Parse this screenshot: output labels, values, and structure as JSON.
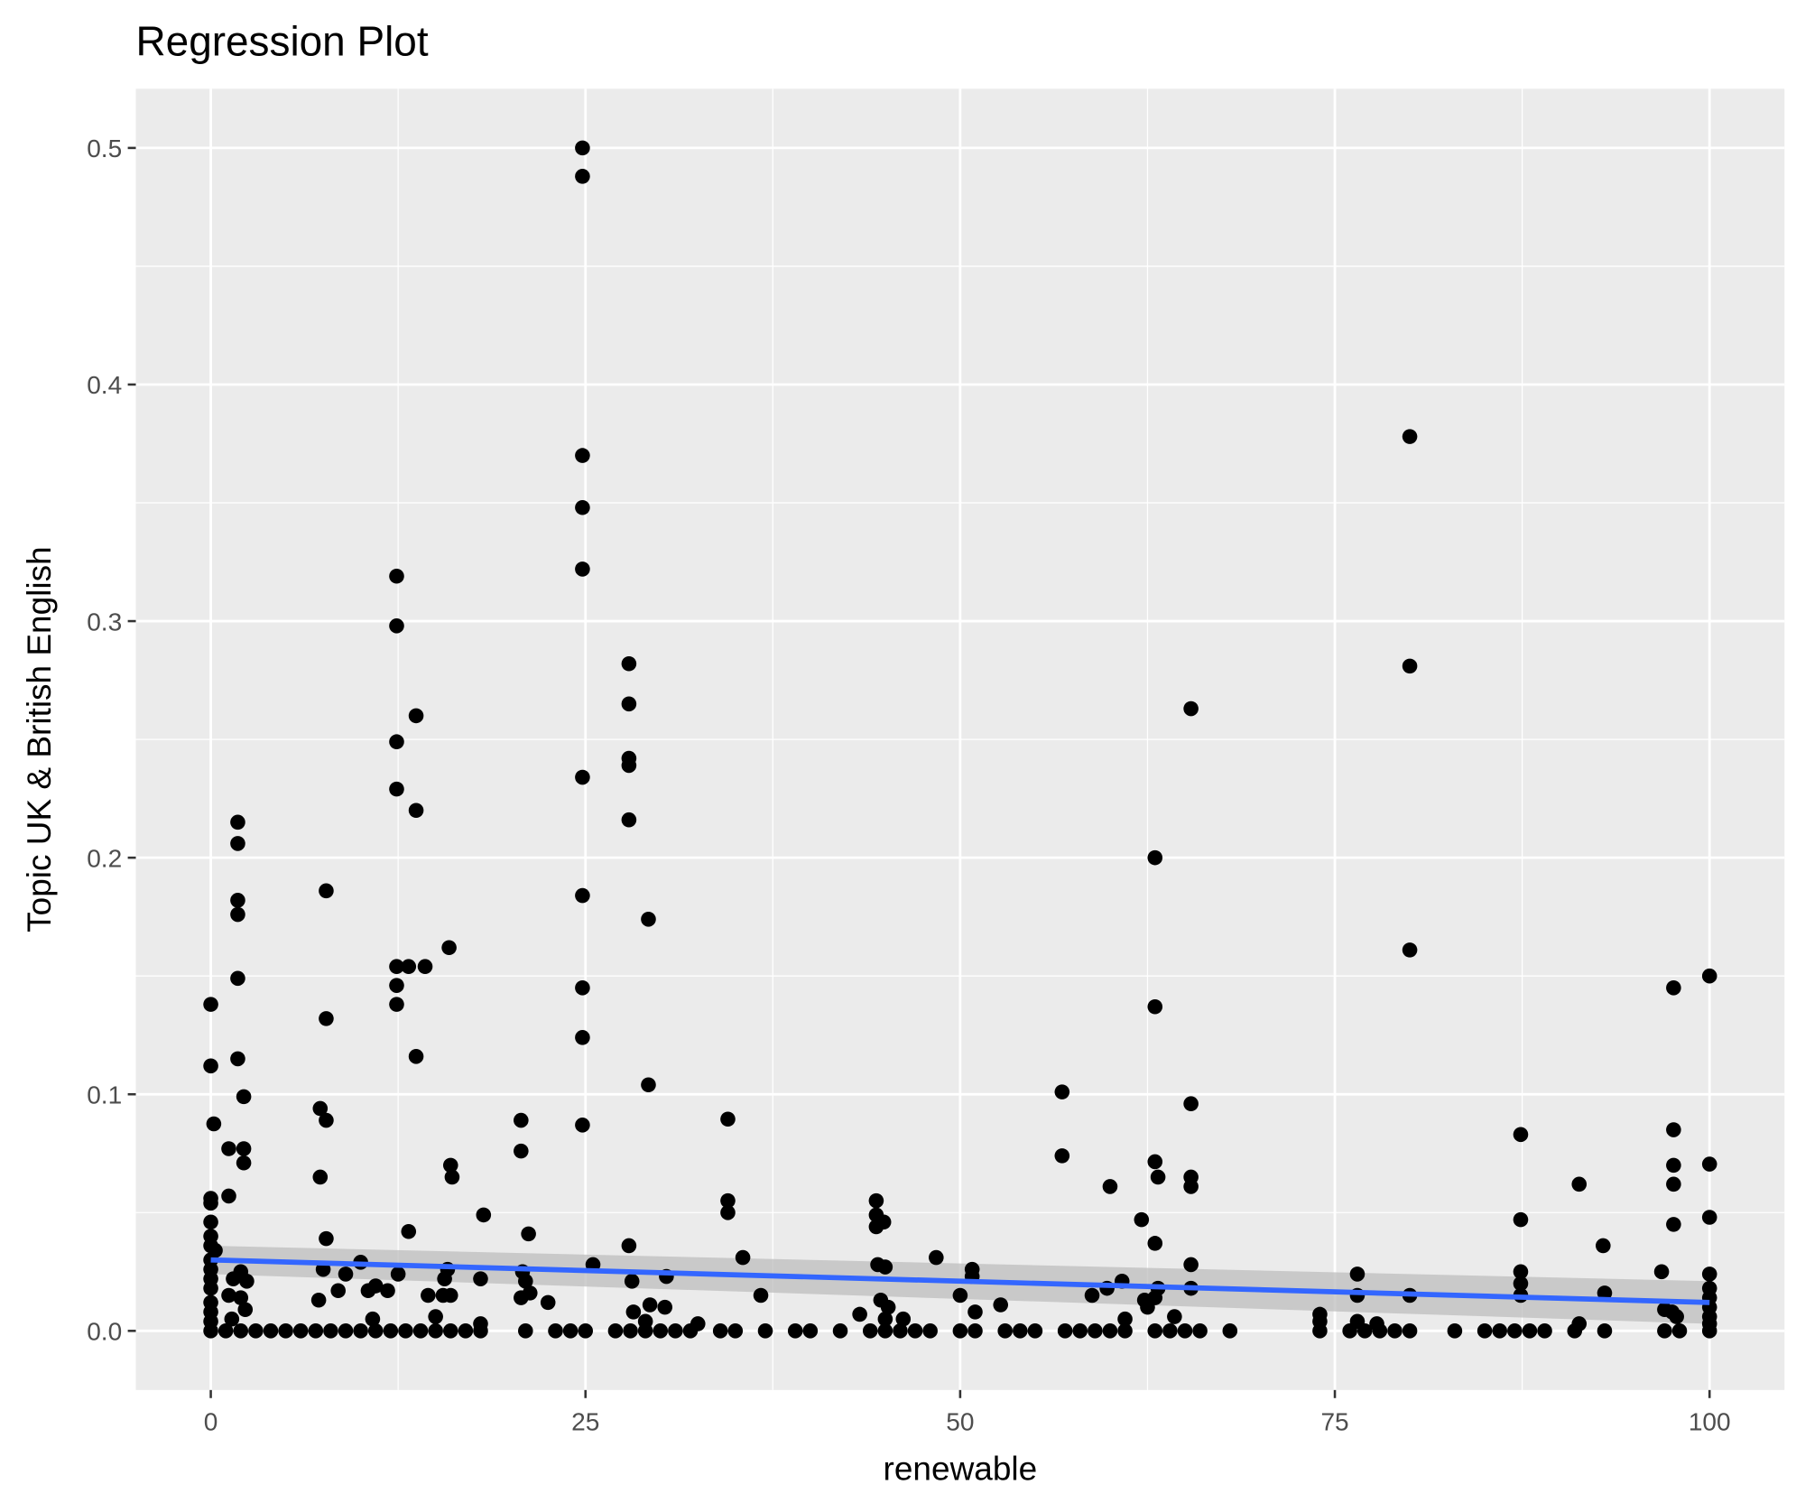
{
  "chart_data": {
    "type": "scatter",
    "title": "Regression Plot",
    "xlabel": "renewable",
    "ylabel": "Topic UK & British English",
    "xlim": [
      -5,
      105
    ],
    "ylim": [
      -0.025,
      0.525
    ],
    "x_ticks": [
      0,
      25,
      50,
      75,
      100
    ],
    "x_tick_labels": [
      "0",
      "25",
      "50",
      "75",
      "100"
    ],
    "y_ticks": [
      0.0,
      0.1,
      0.2,
      0.3,
      0.4,
      0.5
    ],
    "y_tick_labels": [
      "0.0",
      "0.1",
      "0.2",
      "0.3",
      "0.4",
      "0.5"
    ],
    "grid": true,
    "colors": {
      "panel": "#EBEBEB",
      "grid": "#FFFFFF",
      "points": "#000000",
      "line": "#3366FF",
      "band": "#BEBEBE"
    },
    "regression": {
      "x": [
        0,
        100
      ],
      "y": [
        0.03,
        0.012
      ],
      "ci_halfwidth": [
        0.006,
        0.009
      ]
    },
    "points": [
      [
        0,
        0.138
      ],
      [
        0,
        0.112
      ],
      [
        0.2,
        0.0875
      ],
      [
        0,
        0.056
      ],
      [
        0,
        0.054
      ],
      [
        0,
        0.046
      ],
      [
        0,
        0.04
      ],
      [
        0,
        0.036
      ],
      [
        0,
        0.03
      ],
      [
        0,
        0.026
      ],
      [
        0,
        0.022
      ],
      [
        0,
        0.018
      ],
      [
        0,
        0.012
      ],
      [
        0,
        0.008
      ],
      [
        0,
        0.004
      ],
      [
        0,
        0
      ],
      [
        0.3,
        0.034
      ],
      [
        1.2,
        0.077
      ],
      [
        1.2,
        0.057
      ],
      [
        1.8,
        0.215
      ],
      [
        1.8,
        0.206
      ],
      [
        1.8,
        0.182
      ],
      [
        1.8,
        0.176
      ],
      [
        1.8,
        0.149
      ],
      [
        1.8,
        0.115
      ],
      [
        2.2,
        0.099
      ],
      [
        2.2,
        0.077
      ],
      [
        2.2,
        0.071
      ],
      [
        1.2,
        0.015
      ],
      [
        1.5,
        0.022
      ],
      [
        2,
        0.025
      ],
      [
        2.3,
        0.009
      ],
      [
        2.4,
        0.021
      ],
      [
        1.4,
        0.005
      ],
      [
        2,
        0.014
      ],
      [
        7.3,
        0.094
      ],
      [
        7.7,
        0.089
      ],
      [
        7.7,
        0.186
      ],
      [
        7.7,
        0.132
      ],
      [
        7.3,
        0.065
      ],
      [
        7.7,
        0.039
      ],
      [
        7.5,
        0.026
      ],
      [
        7.2,
        0.013
      ],
      [
        8.5,
        0.017
      ],
      [
        9,
        0.024
      ],
      [
        10,
        0.029
      ],
      [
        10.5,
        0.017
      ],
      [
        11,
        0.019
      ],
      [
        11.8,
        0.017
      ],
      [
        10.8,
        0.005
      ],
      [
        12.4,
        0.319
      ],
      [
        12.4,
        0.298
      ],
      [
        12.4,
        0.249
      ],
      [
        12.4,
        0.229
      ],
      [
        12.4,
        0.154
      ],
      [
        12.4,
        0.146
      ],
      [
        12.4,
        0.138
      ],
      [
        13.2,
        0.154
      ],
      [
        13.7,
        0.26
      ],
      [
        13.7,
        0.22
      ],
      [
        13.7,
        0.116
      ],
      [
        14.3,
        0.154
      ],
      [
        13.2,
        0.042
      ],
      [
        12.5,
        0.024
      ],
      [
        14.5,
        0.015
      ],
      [
        15,
        0.006
      ],
      [
        15.9,
        0.162
      ],
      [
        16,
        0.07
      ],
      [
        16.1,
        0.065
      ],
      [
        18.2,
        0.049
      ],
      [
        15.8,
        0.026
      ],
      [
        15.6,
        0.022
      ],
      [
        16,
        0.015
      ],
      [
        15.5,
        0.015
      ],
      [
        18,
        0.022
      ],
      [
        18,
        0.003
      ],
      [
        20.7,
        0.089
      ],
      [
        20.7,
        0.076
      ],
      [
        21.2,
        0.041
      ],
      [
        20.8,
        0.025
      ],
      [
        21,
        0.021
      ],
      [
        21.3,
        0.016
      ],
      [
        20.7,
        0.014
      ],
      [
        22.5,
        0.012
      ],
      [
        24.8,
        0.5
      ],
      [
        24.8,
        0.488
      ],
      [
        24.8,
        0.37
      ],
      [
        24.8,
        0.348
      ],
      [
        24.8,
        0.322
      ],
      [
        24.8,
        0.234
      ],
      [
        24.8,
        0.184
      ],
      [
        24.8,
        0.145
      ],
      [
        24.8,
        0.124
      ],
      [
        24.8,
        0.087
      ],
      [
        25.5,
        0.028
      ],
      [
        27.9,
        0.282
      ],
      [
        27.9,
        0.265
      ],
      [
        27.9,
        0.242
      ],
      [
        27.9,
        0.239
      ],
      [
        27.9,
        0.216
      ],
      [
        27.9,
        0.036
      ],
      [
        29.2,
        0.174
      ],
      [
        29.2,
        0.104
      ],
      [
        28.1,
        0.021
      ],
      [
        28.2,
        0.008
      ],
      [
        29.3,
        0.011
      ],
      [
        30.3,
        0.01
      ],
      [
        30.4,
        0.023
      ],
      [
        32.5,
        0.003
      ],
      [
        29,
        0.004
      ],
      [
        34.5,
        0.0895
      ],
      [
        34.5,
        0.055
      ],
      [
        34.5,
        0.05
      ],
      [
        35.5,
        0.031
      ],
      [
        36.7,
        0.015
      ],
      [
        44.4,
        0.055
      ],
      [
        44.4,
        0.049
      ],
      [
        44.4,
        0.044
      ],
      [
        44.9,
        0.046
      ],
      [
        48.4,
        0.031
      ],
      [
        44.5,
        0.028
      ],
      [
        45,
        0.027
      ],
      [
        44.7,
        0.013
      ],
      [
        45.2,
        0.01
      ],
      [
        43.3,
        0.007
      ],
      [
        45,
        0.005
      ],
      [
        46.2,
        0.005
      ],
      [
        50,
        0.015
      ],
      [
        50.8,
        0.026
      ],
      [
        50.8,
        0.023
      ],
      [
        51,
        0.008
      ],
      [
        52.7,
        0.011
      ],
      [
        56.8,
        0.101
      ],
      [
        56.8,
        0.074
      ],
      [
        60,
        0.061
      ],
      [
        62.1,
        0.047
      ],
      [
        63,
        0.2
      ],
      [
        63,
        0.137
      ],
      [
        63,
        0.0715
      ],
      [
        63.2,
        0.065
      ],
      [
        63,
        0.037
      ],
      [
        65.4,
        0.263
      ],
      [
        65.4,
        0.096
      ],
      [
        65.4,
        0.065
      ],
      [
        65.4,
        0.061
      ],
      [
        65.4,
        0.028
      ],
      [
        58.8,
        0.015
      ],
      [
        59.8,
        0.018
      ],
      [
        60.8,
        0.021
      ],
      [
        61,
        0.005
      ],
      [
        62.3,
        0.013
      ],
      [
        62.5,
        0.01
      ],
      [
        63.2,
        0.018
      ],
      [
        63,
        0.014
      ],
      [
        64.3,
        0.006
      ],
      [
        65.4,
        0.018
      ],
      [
        74,
        0.007
      ],
      [
        74,
        0.004
      ],
      [
        76.5,
        0.024
      ],
      [
        76.5,
        0.015
      ],
      [
        76.5,
        0.004
      ],
      [
        77.8,
        0.003
      ],
      [
        80,
        0.378
      ],
      [
        80,
        0.281
      ],
      [
        80,
        0.161
      ],
      [
        80,
        0.015
      ],
      [
        87.4,
        0.083
      ],
      [
        87.4,
        0.047
      ],
      [
        87.4,
        0.025
      ],
      [
        87.4,
        0.02
      ],
      [
        87.4,
        0.015
      ],
      [
        91.3,
        0.062
      ],
      [
        92.9,
        0.036
      ],
      [
        91.3,
        0.003
      ],
      [
        93,
        0.016
      ],
      [
        97.6,
        0.145
      ],
      [
        97.6,
        0.085
      ],
      [
        97.6,
        0.07
      ],
      [
        97.6,
        0.062
      ],
      [
        97.6,
        0.045
      ],
      [
        96.8,
        0.025
      ],
      [
        97,
        0.009
      ],
      [
        97.5,
        0.008
      ],
      [
        97.8,
        0.006
      ],
      [
        100,
        0.15
      ],
      [
        100,
        0.0705
      ],
      [
        100,
        0.048
      ],
      [
        100,
        0.024
      ],
      [
        100,
        0.018
      ],
      [
        100,
        0.014
      ],
      [
        100,
        0.01
      ],
      [
        100,
        0.006
      ],
      [
        100,
        0.003
      ],
      [
        1,
        0
      ],
      [
        2,
        0
      ],
      [
        3,
        0
      ],
      [
        4,
        0
      ],
      [
        5,
        0
      ],
      [
        6,
        0
      ],
      [
        7,
        0
      ],
      [
        8,
        0
      ],
      [
        9,
        0
      ],
      [
        10,
        0
      ],
      [
        11,
        0
      ],
      [
        12,
        0
      ],
      [
        13,
        0
      ],
      [
        14,
        0
      ],
      [
        15,
        0
      ],
      [
        16,
        0
      ],
      [
        17,
        0
      ],
      [
        18,
        0
      ],
      [
        21,
        0
      ],
      [
        23,
        0
      ],
      [
        24,
        0
      ],
      [
        25,
        0
      ],
      [
        27,
        0
      ],
      [
        28,
        0
      ],
      [
        29,
        0
      ],
      [
        30,
        0
      ],
      [
        31,
        0
      ],
      [
        32,
        0
      ],
      [
        34,
        0
      ],
      [
        35,
        0
      ],
      [
        37,
        0
      ],
      [
        39,
        0
      ],
      [
        40,
        0
      ],
      [
        42,
        0
      ],
      [
        44,
        0
      ],
      [
        45,
        0
      ],
      [
        46,
        0
      ],
      [
        47,
        0
      ],
      [
        48,
        0
      ],
      [
        50,
        0
      ],
      [
        51,
        0
      ],
      [
        53,
        0
      ],
      [
        54,
        0
      ],
      [
        55,
        0
      ],
      [
        57,
        0
      ],
      [
        58,
        0
      ],
      [
        59,
        0
      ],
      [
        60,
        0
      ],
      [
        61,
        0
      ],
      [
        63,
        0
      ],
      [
        64,
        0
      ],
      [
        65,
        0
      ],
      [
        66,
        0
      ],
      [
        68,
        0
      ],
      [
        74,
        0
      ],
      [
        76,
        0
      ],
      [
        77,
        0
      ],
      [
        78,
        0
      ],
      [
        79,
        0
      ],
      [
        80,
        0
      ],
      [
        83,
        0
      ],
      [
        85,
        0
      ],
      [
        86,
        0
      ],
      [
        87,
        0
      ],
      [
        88,
        0
      ],
      [
        89,
        0
      ],
      [
        91,
        0
      ],
      [
        93,
        0
      ],
      [
        97,
        0
      ],
      [
        98,
        0
      ],
      [
        100,
        0
      ]
    ]
  }
}
